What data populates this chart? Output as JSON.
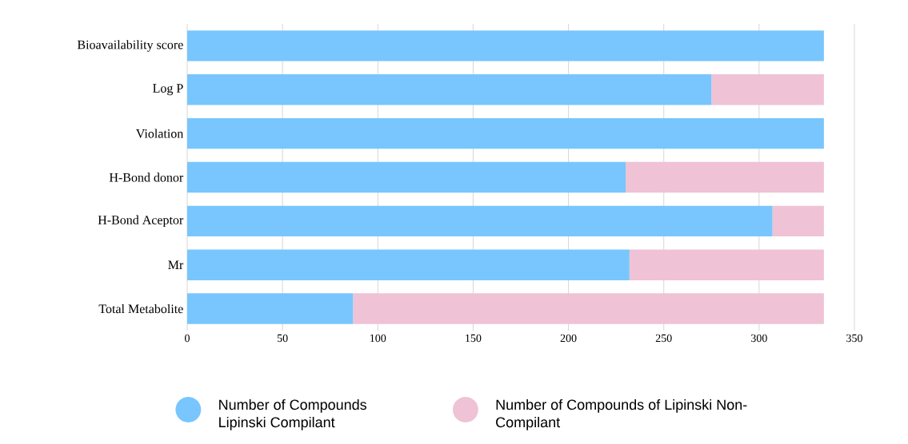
{
  "chart_data": {
    "type": "bar",
    "orientation": "horizontal",
    "stacked": true,
    "categories": [
      "Bioavailability score",
      "Log P",
      "Violation",
      "H-Bond donor",
      "H-Bond Aceptor",
      "Mr",
      "Total Metabolite"
    ],
    "series": [
      {
        "name": "Number of Compounds Lipinski Compilant",
        "color": "#78c6fd",
        "values": [
          334,
          275,
          334,
          230,
          307,
          232,
          87
        ]
      },
      {
        "name": "Number of Compounds of Lipinski Non- Compilant",
        "color": "#efc2d5",
        "values": [
          0,
          59,
          0,
          104,
          27,
          102,
          247
        ]
      }
    ],
    "xlim": [
      0,
      350
    ],
    "xticks": [
      0,
      50,
      100,
      150,
      200,
      250,
      300,
      350
    ],
    "grid": "x",
    "legend": "bottom"
  }
}
